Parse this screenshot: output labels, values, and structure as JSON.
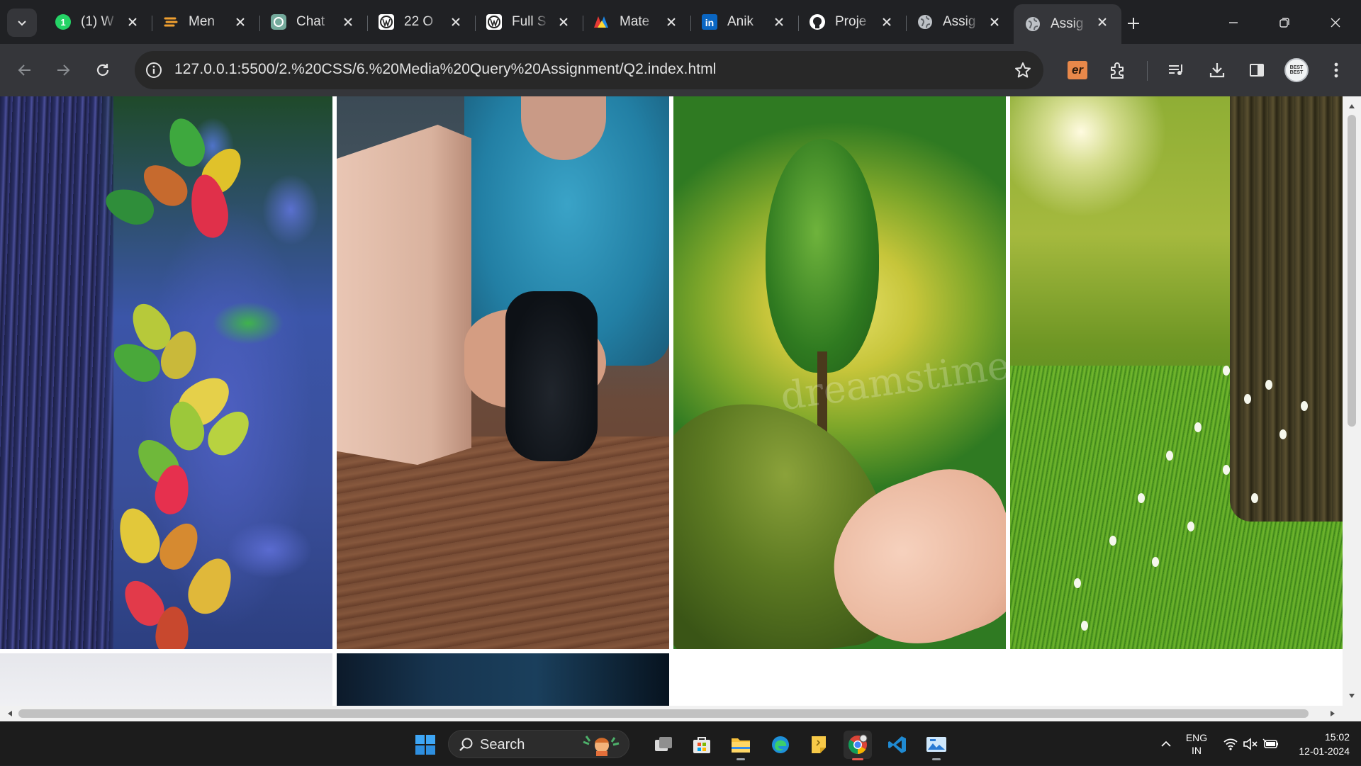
{
  "browser": {
    "tabs": [
      {
        "title": "(1) W",
        "icon": "whatsapp-icon",
        "badge": "1"
      },
      {
        "title": "Men",
        "icon": "menu-app-icon"
      },
      {
        "title": "Chat",
        "icon": "chatgpt-icon"
      },
      {
        "title": "22 O",
        "icon": "wordpress-icon"
      },
      {
        "title": "Full S",
        "icon": "wordpress-icon"
      },
      {
        "title": "Mate",
        "icon": "material-icon"
      },
      {
        "title": "Anik",
        "icon": "linkedin-icon",
        "badge": "in"
      },
      {
        "title": "Proje",
        "icon": "github-icon"
      },
      {
        "title": "Assig",
        "icon": "globe-icon"
      },
      {
        "title": "Assig",
        "icon": "globe-icon",
        "active": true
      }
    ],
    "address_bar": {
      "url": "127.0.0.1:5500/2.%20CSS/6.%20Media%20Query%20Assignment/Q2.index.html"
    },
    "extensions": {
      "er_label": "er",
      "profile_label": "BEST BEST"
    }
  },
  "page": {
    "gallery": [
      {
        "name": "autumn-leaves-photo"
      },
      {
        "name": "laptop-camera-photo"
      },
      {
        "name": "tree-in-hand-photo",
        "watermark": "dreamstime"
      },
      {
        "name": "forest-meadow-photo"
      },
      {
        "name": "light-photo"
      },
      {
        "name": "dark-blue-photo"
      }
    ]
  },
  "taskbar": {
    "search_label": "Search",
    "language": {
      "line1": "ENG",
      "line2": "IN"
    },
    "time": "15:02",
    "date": "12-01-2024"
  },
  "colors": {
    "chrome_dark": "#202124",
    "toolbar": "#35363a",
    "omnibox": "#282828",
    "taskbar": "#1c1c1c"
  }
}
